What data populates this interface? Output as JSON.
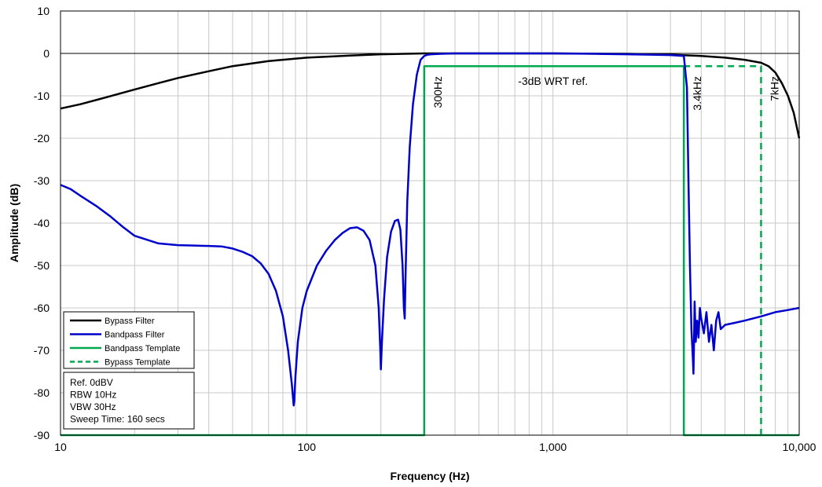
{
  "chart_data": {
    "type": "line",
    "title": "",
    "xlabel": "Frequency (Hz)",
    "ylabel": "Amplitude (dB)",
    "x_scale": "log",
    "xlim": [
      10,
      10000
    ],
    "ylim": [
      -90,
      10
    ],
    "x_ticks": [
      10,
      100,
      1000,
      10000
    ],
    "x_tick_labels": [
      "10",
      "100",
      "1,000",
      "10,000"
    ],
    "y_ticks": [
      10,
      0,
      -10,
      -20,
      -30,
      -40,
      -50,
      -60,
      -70,
      -80,
      -90
    ],
    "y_tick_labels": [
      "10",
      "0",
      "-10",
      "-20",
      "-30",
      "-40",
      "-50",
      "-60",
      "-70",
      "-80",
      "-90"
    ],
    "grid": true,
    "legend_position": "bottom-left",
    "series": [
      {
        "name": "Bypass Filter",
        "color": "#000000",
        "style": "solid",
        "x": [
          10,
          12,
          15,
          20,
          25,
          30,
          40,
          50,
          70,
          100,
          150,
          200,
          300,
          500,
          700,
          1000,
          2000,
          3000,
          4000,
          5000,
          6000,
          7000,
          7500,
          8000,
          8500,
          9000,
          9500,
          10000
        ],
        "y": [
          -13,
          -12,
          -10.5,
          -8.5,
          -7,
          -5.8,
          -4.2,
          -3,
          -1.8,
          -1,
          -0.5,
          -0.2,
          0,
          0,
          0,
          0,
          -0.1,
          -0.3,
          -0.6,
          -1,
          -1.5,
          -2.2,
          -3,
          -4.5,
          -7,
          -10,
          -14,
          -20
        ]
      },
      {
        "name": "Bandpass Filter",
        "color": "#0000CC",
        "style": "solid",
        "x": [
          10,
          11,
          12,
          14,
          16,
          18,
          20,
          25,
          30,
          35,
          40,
          45,
          50,
          55,
          60,
          65,
          70,
          75,
          80,
          84,
          87,
          88.5,
          89,
          90,
          92,
          96,
          100,
          110,
          120,
          130,
          140,
          150,
          160,
          170,
          180,
          190,
          196,
          199,
          200,
          202,
          206,
          212,
          220,
          228,
          235,
          240,
          245,
          248,
          250,
          252,
          256,
          262,
          270,
          280,
          290,
          300,
          310,
          320,
          350,
          400,
          500,
          700,
          1000,
          1500,
          2000,
          2500,
          3000,
          3400,
          3500,
          3550,
          3600,
          3650,
          3700,
          3720,
          3740,
          3760,
          3780,
          3800,
          3850,
          3900,
          3950,
          4000,
          4100,
          4200,
          4300,
          4400,
          4500,
          4600,
          4700,
          4800,
          5000,
          5500,
          6000,
          7000,
          8000,
          9000,
          10000
        ],
        "y": [
          -31,
          -32,
          -33.5,
          -36,
          -38.5,
          -41,
          -43,
          -44.8,
          -45.2,
          -45.3,
          -45.4,
          -45.5,
          -46,
          -46.8,
          -47.8,
          -49.5,
          -52,
          -56,
          -62,
          -70,
          -78,
          -83,
          -82,
          -76,
          -68,
          -60,
          -56,
          -50,
          -46.5,
          -44,
          -42.3,
          -41.2,
          -41,
          -41.8,
          -44,
          -50,
          -60,
          -70,
          -74.5,
          -68,
          -58,
          -48,
          -42,
          -39.5,
          -39.2,
          -41.5,
          -50,
          -60,
          -62.5,
          -52,
          -35,
          -22,
          -12,
          -5,
          -1.5,
          -0.6,
          -0.3,
          -0.2,
          -0.1,
          0,
          0,
          0,
          0,
          -0.1,
          -0.2,
          -0.3,
          -0.4,
          -0.6,
          -8,
          -30,
          -50,
          -65,
          -72,
          -75.5,
          -68,
          -58.5,
          -63,
          -68,
          -63,
          -67,
          -60,
          -62.5,
          -66,
          -61,
          -68,
          -64,
          -70,
          -63,
          -61,
          -65,
          -64,
          -63.5,
          -63,
          -62,
          -61,
          -60.5,
          -60
        ]
      },
      {
        "name": "Bandpass Template",
        "color": "#00A850",
        "style": "solid",
        "x": [
          10,
          300,
          300,
          3400,
          3400,
          10000
        ],
        "y": [
          -90,
          -90,
          -3,
          -3,
          -90,
          -90
        ]
      },
      {
        "name": "Bypass Template",
        "color": "#00A850",
        "style": "dashed",
        "x": [
          3400,
          7000,
          7000
        ],
        "y": [
          -3,
          -3,
          -90
        ]
      }
    ],
    "annotations": [
      {
        "id": "ann-3db",
        "text": "-3dB WRT ref.",
        "x": 1000,
        "y": -6.5,
        "rotate": 0
      },
      {
        "id": "ann-300",
        "text": "300Hz",
        "x": 300,
        "y": -5,
        "rotate": -90
      },
      {
        "id": "ann-3k4",
        "text": "3.4kHz",
        "x": 3400,
        "y": -5,
        "rotate": -90
      },
      {
        "id": "ann-7k",
        "text": "7kHz",
        "x": 7000,
        "y": -5,
        "rotate": -90
      }
    ],
    "info_box": [
      "Ref. 0dBV",
      "RBW 10Hz",
      "VBW 30Hz",
      "Sweep Time: 160 secs"
    ]
  }
}
